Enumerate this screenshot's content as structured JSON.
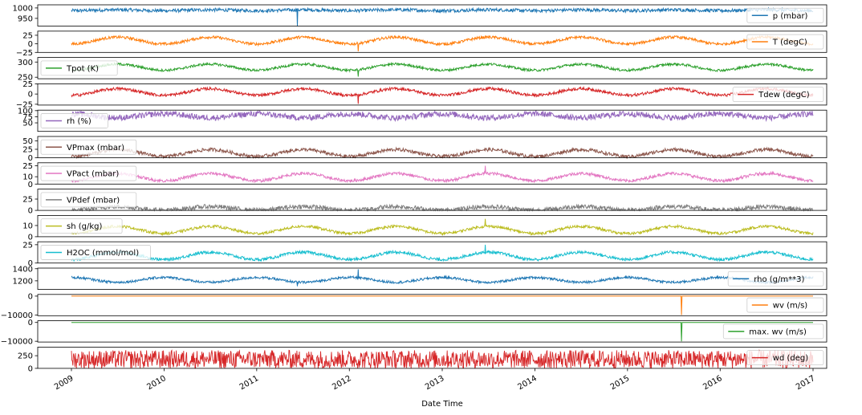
{
  "chart_data": {
    "type": "line",
    "xlabel": "Date Time",
    "x_ticks": [
      "2009",
      "2010",
      "2011",
      "2012",
      "2013",
      "2014",
      "2015",
      "2016",
      "2017"
    ],
    "x_range": [
      "2009-01-01",
      "2017-01-01"
    ],
    "panels": [
      {
        "name": "p (mbar)",
        "color": "#1f77b4",
        "yticks": [
          "1000",
          "950"
        ],
        "ytick_values": [
          1000,
          950
        ],
        "ylim": [
          913,
          1015
        ],
        "legend": "right",
        "series": {
          "type": "seasonal",
          "mean": 989,
          "amp": 2,
          "noise": 8,
          "events": [
            {
              "date": "2011-06-10",
              "value": 913
            }
          ]
        }
      },
      {
        "name": "T (degC)",
        "color": "#ff7f0e",
        "yticks": [
          "25",
          "0",
          "−25"
        ],
        "ytick_values": [
          25,
          0,
          -25
        ],
        "ylim": [
          -25,
          37
        ],
        "legend": "right",
        "series": {
          "type": "seasonal",
          "mean": 9.5,
          "amp": 10,
          "noise": 4,
          "events": [
            {
              "date": "2012-02-05",
              "value": -22
            }
          ]
        }
      },
      {
        "name": "Tpot (K)",
        "color": "#2ca02c",
        "yticks": [
          "300",
          "250"
        ],
        "ytick_values": [
          300,
          250
        ],
        "ylim": [
          245,
          315
        ],
        "legend": "left",
        "series": {
          "type": "seasonal",
          "mean": 283,
          "amp": 10,
          "noise": 4,
          "events": [
            {
              "date": "2012-02-05",
              "value": 252
            }
          ]
        }
      },
      {
        "name": "Tdew (degC)",
        "color": "#d62728",
        "yticks": [
          "25",
          "0",
          "−25"
        ],
        "ytick_values": [
          25,
          0,
          -25
        ],
        "ylim": [
          -27,
          25
        ],
        "legend": "right",
        "series": {
          "type": "seasonal",
          "mean": 5,
          "amp": 8,
          "noise": 3.5,
          "events": [
            {
              "date": "2012-02-05",
              "value": -24
            }
          ]
        }
      },
      {
        "name": "rh (%)",
        "color": "#9467bd",
        "yticks": [
          "100",
          "75",
          "50"
        ],
        "ytick_values": [
          100,
          75,
          50
        ],
        "ylim": [
          15,
          102
        ],
        "legend": "left",
        "series": {
          "type": "seasonal",
          "mean": 79,
          "amp": -8,
          "noise": 12,
          "events": []
        }
      },
      {
        "name": "VPmax (mbar)",
        "color": "#8c564b",
        "yticks": [
          "50",
          "25",
          "0"
        ],
        "ytick_values": [
          50,
          25,
          0
        ],
        "ylim": [
          0,
          63
        ],
        "legend": "left",
        "series": {
          "type": "seasonal",
          "mean": 14,
          "amp": 10,
          "noise": 5,
          "events": []
        }
      },
      {
        "name": "VPact (mbar)",
        "color": "#e377c2",
        "yticks": [
          "25",
          "10",
          "0"
        ],
        "ytick_values": [
          25,
          10,
          0
        ],
        "ylim": [
          0,
          29
        ],
        "legend": "left",
        "series": {
          "type": "seasonal",
          "mean": 9.5,
          "amp": 5,
          "noise": 2,
          "events": [
            {
              "date": "2013-06-20",
              "value": 25
            }
          ]
        }
      },
      {
        "name": "VPdef (mbar)",
        "color": "#7f7f7f",
        "yticks": [
          "25",
          "0"
        ],
        "ytick_values": [
          25,
          0
        ],
        "ylim": [
          0,
          47
        ],
        "legend": "left",
        "series": {
          "type": "seasonal",
          "mean": 4.5,
          "amp": 4,
          "noise": 5,
          "events": []
        }
      },
      {
        "name": "sh (g/kg)",
        "color": "#bcbd22",
        "yticks": [
          "10",
          "0"
        ],
        "ytick_values": [
          10,
          0
        ],
        "ylim": [
          0,
          19
        ],
        "legend": "left",
        "series": {
          "type": "seasonal",
          "mean": 6.1,
          "amp": 3.2,
          "noise": 1.2,
          "events": [
            {
              "date": "2013-06-20",
              "value": 16
            }
          ]
        }
      },
      {
        "name": "H2OC (mmol/mol)",
        "color": "#17becf",
        "yticks": [
          "25",
          "0"
        ],
        "ytick_values": [
          25,
          0
        ],
        "ylim": [
          0,
          29
        ],
        "legend": "left",
        "series": {
          "type": "seasonal",
          "mean": 9.8,
          "amp": 5,
          "noise": 2,
          "events": [
            {
              "date": "2013-06-20",
              "value": 25
            }
          ]
        }
      },
      {
        "name": "rho (g/m**3)",
        "color": "#1f77b4",
        "yticks": [
          "1400",
          "1200"
        ],
        "ytick_values": [
          1400,
          1200
        ],
        "ylim": [
          1059,
          1410
        ],
        "legend": "right",
        "series": {
          "type": "seasonal",
          "mean": 1216,
          "amp": -40,
          "noise": 20,
          "events": [
            {
              "date": "2012-02-05",
              "value": 1390
            },
            {
              "date": "2011-06-10",
              "value": 1110
            }
          ]
        }
      },
      {
        "name": "wv (m/s)",
        "color": "#ff7f0e",
        "yticks": [
          "0",
          "−10000"
        ],
        "ytick_values": [
          0,
          -10000
        ],
        "ylim": [
          -10400,
          900
        ],
        "legend": "right",
        "series": {
          "type": "flat",
          "mean": 0,
          "events": [
            {
              "date": "2015-08-01",
              "value": -9999
            }
          ]
        }
      },
      {
        "name": "max. wv (m/s)",
        "color": "#2ca02c",
        "yticks": [
          "0",
          "−10000"
        ],
        "ytick_values": [
          0,
          -10000
        ],
        "ylim": [
          -10400,
          900
        ],
        "legend": "right",
        "series": {
          "type": "flat",
          "mean": 0,
          "events": [
            {
              "date": "2015-08-01",
              "value": -9999
            }
          ]
        }
      },
      {
        "name": "wd (deg)",
        "color": "#d62728",
        "yticks": [
          "250",
          "0"
        ],
        "ytick_values": [
          250,
          0
        ],
        "ylim": [
          0,
          420
        ],
        "legend": "right",
        "series": {
          "type": "uniform",
          "min": 0,
          "max": 360,
          "events": []
        }
      }
    ]
  }
}
